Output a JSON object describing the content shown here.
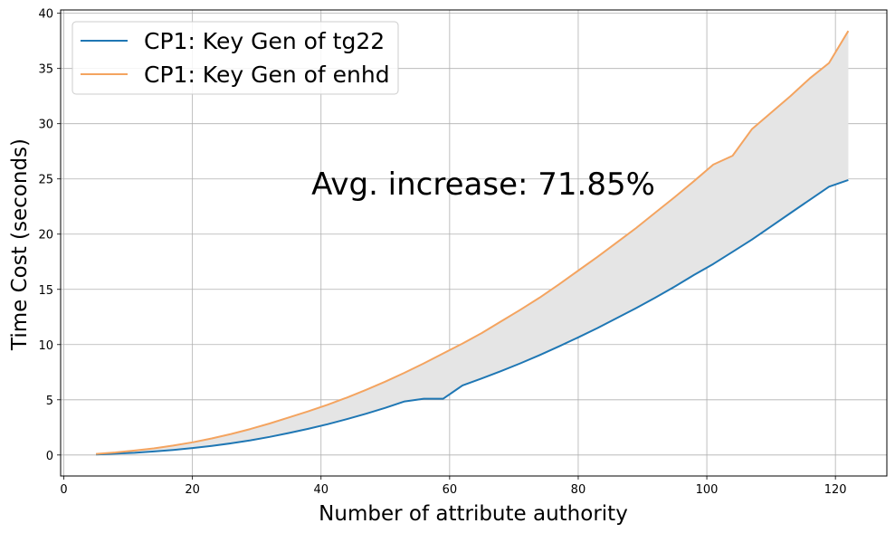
{
  "chart_data": {
    "type": "line",
    "title": "",
    "xlabel": "Number of attribute authority",
    "ylabel": "Time Cost (seconds)",
    "xlim": [
      -0.5,
      128
    ],
    "ylim": [
      -1.9,
      40.3
    ],
    "xticks": [
      0,
      20,
      40,
      60,
      80,
      100,
      120
    ],
    "yticks": [
      0,
      5,
      10,
      15,
      20,
      25,
      30,
      35,
      40
    ],
    "grid": true,
    "legend_position": "top-left",
    "fill_between": {
      "color": "#e5e5e5",
      "between": [
        "CP1: Key Gen of enhd",
        "CP1: Key Gen of tg22"
      ]
    },
    "annotation": "Avg. increase: 71.85%",
    "series": [
      {
        "name": "CP1: Key Gen of tg22",
        "color": "#1f77b4",
        "x": [
          5,
          8,
          11,
          14,
          17,
          20,
          23,
          26,
          29,
          32,
          35,
          38,
          41,
          44,
          47,
          50,
          53,
          56,
          59,
          62,
          65,
          68,
          71,
          74,
          77,
          80,
          83,
          86,
          89,
          92,
          95,
          98,
          101,
          104,
          107,
          110,
          113,
          116,
          119,
          122
        ],
        "values": [
          0.05,
          0.12,
          0.2,
          0.32,
          0.46,
          0.63,
          0.83,
          1.06,
          1.33,
          1.64,
          1.99,
          2.37,
          2.79,
          3.25,
          3.74,
          4.27,
          4.85,
          5.1,
          5.1,
          6.3,
          6.93,
          7.6,
          8.3,
          9.05,
          9.83,
          10.65,
          11.5,
          12.4,
          13.3,
          14.25,
          15.25,
          16.3,
          17.3,
          18.4,
          19.5,
          20.7,
          21.9,
          23.1,
          24.3,
          24.9
        ]
      },
      {
        "name": "CP1: Key Gen of enhd",
        "color": "#f4a460",
        "x": [
          5,
          8,
          11,
          14,
          17,
          20,
          23,
          26,
          29,
          32,
          35,
          38,
          41,
          44,
          47,
          50,
          53,
          56,
          59,
          62,
          65,
          68,
          71,
          74,
          77,
          80,
          83,
          86,
          89,
          92,
          95,
          98,
          101,
          104,
          107,
          110,
          113,
          116,
          119,
          122
        ],
        "values": [
          0.1,
          0.23,
          0.4,
          0.6,
          0.85,
          1.15,
          1.5,
          1.9,
          2.35,
          2.85,
          3.4,
          3.95,
          4.55,
          5.2,
          5.9,
          6.65,
          7.45,
          8.3,
          9.2,
          10.1,
          11.05,
          12.1,
          13.15,
          14.25,
          15.45,
          16.7,
          17.95,
          19.25,
          20.55,
          21.95,
          23.35,
          24.8,
          26.3,
          27.1,
          29.5,
          31.0,
          32.5,
          34.1,
          35.5,
          38.4
        ]
      }
    ]
  }
}
